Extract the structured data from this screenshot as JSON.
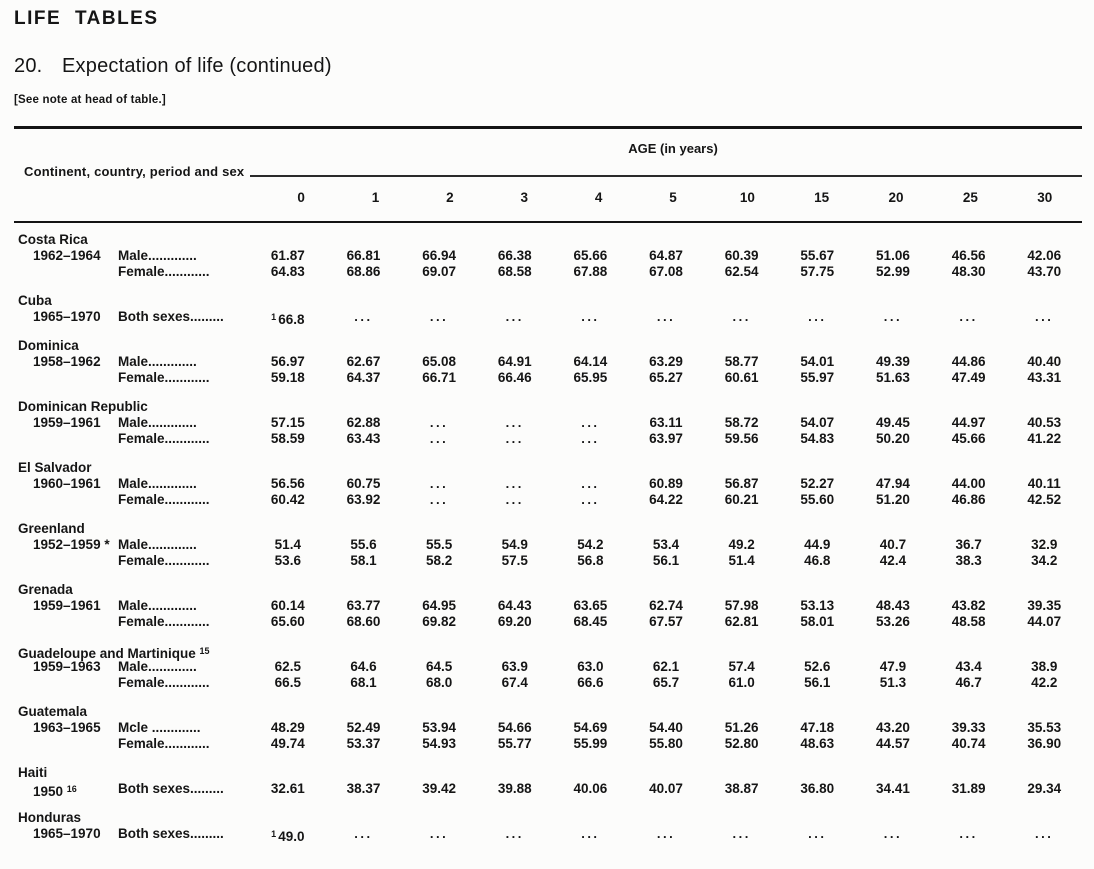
{
  "page": {
    "kicker": "LIFE TABLES",
    "table_number": "20.",
    "title": "Expectation of life (continued)",
    "note": "[See note at head of table.]"
  },
  "table": {
    "stub_header": "Continent, country, period and sex",
    "age_header": "AGE (in years)",
    "age_columns": [
      "0",
      "1",
      "2",
      "3",
      "4",
      "5",
      "10",
      "15",
      "20",
      "25",
      "30"
    ],
    "missing_marker": "...",
    "groups": [
      {
        "country": "Costa Rica",
        "rows": [
          {
            "period": "1962–1964",
            "label": "Male.............",
            "values": [
              "61.87",
              "66.81",
              "66.94",
              "66.38",
              "65.66",
              "64.87",
              "60.39",
              "55.67",
              "51.06",
              "46.56",
              "42.06"
            ]
          },
          {
            "period": "",
            "label": "Female............",
            "values": [
              "64.83",
              "68.86",
              "69.07",
              "68.58",
              "67.88",
              "67.08",
              "62.54",
              "57.75",
              "52.99",
              "48.30",
              "43.70"
            ]
          }
        ]
      },
      {
        "country": "Cuba",
        "rows": [
          {
            "period": "1965–1970",
            "label": "Both sexes.........",
            "values": [
              "^1 66.8",
              "...",
              "...",
              "...",
              "...",
              "...",
              "...",
              "...",
              "...",
              "...",
              "..."
            ]
          }
        ]
      },
      {
        "country": "Dominica",
        "rows": [
          {
            "period": "1958–1962",
            "label": "Male.............",
            "values": [
              "56.97",
              "62.67",
              "65.08",
              "64.91",
              "64.14",
              "63.29",
              "58.77",
              "54.01",
              "49.39",
              "44.86",
              "40.40"
            ]
          },
          {
            "period": "",
            "label": "Female............",
            "values": [
              "59.18",
              "64.37",
              "66.71",
              "66.46",
              "65.95",
              "65.27",
              "60.61",
              "55.97",
              "51.63",
              "47.49",
              "43.31"
            ]
          }
        ]
      },
      {
        "country": "Dominican Republic",
        "rows": [
          {
            "period": "1959–1961",
            "label": "Male.............",
            "values": [
              "57.15",
              "62.88",
              "...",
              "...",
              "...",
              "63.11",
              "58.72",
              "54.07",
              "49.45",
              "44.97",
              "40.53"
            ]
          },
          {
            "period": "",
            "label": "Female............",
            "values": [
              "58.59",
              "63.43",
              "...",
              "...",
              "...",
              "63.97",
              "59.56",
              "54.83",
              "50.20",
              "45.66",
              "41.22"
            ]
          }
        ]
      },
      {
        "country": "El Salvador",
        "rows": [
          {
            "period": "1960–1961",
            "label": "Male.............",
            "values": [
              "56.56",
              "60.75",
              "...",
              "...",
              "...",
              "60.89",
              "56.87",
              "52.27",
              "47.94",
              "44.00",
              "40.11"
            ]
          },
          {
            "period": "",
            "label": "Female............",
            "values": [
              "60.42",
              "63.92",
              "...",
              "...",
              "...",
              "64.22",
              "60.21",
              "55.60",
              "51.20",
              "46.86",
              "42.52"
            ]
          }
        ]
      },
      {
        "country": "Greenland",
        "rows": [
          {
            "period": "1952–1959 *",
            "label": "Male.............",
            "values": [
              "51.4",
              "55.6",
              "55.5",
              "54.9",
              "54.2",
              "53.4",
              "49.2",
              "44.9",
              "40.7",
              "36.7",
              "32.9"
            ]
          },
          {
            "period": "",
            "label": "Female............",
            "values": [
              "53.6",
              "58.1",
              "58.2",
              "57.5",
              "56.8",
              "56.1",
              "51.4",
              "46.8",
              "42.4",
              "38.3",
              "34.2"
            ]
          }
        ]
      },
      {
        "country": "Grenada",
        "rows": [
          {
            "period": "1959–1961",
            "label": "Male.............",
            "values": [
              "60.14",
              "63.77",
              "64.95",
              "64.43",
              "63.65",
              "62.74",
              "57.98",
              "53.13",
              "48.43",
              "43.82",
              "39.35"
            ]
          },
          {
            "period": "",
            "label": "Female............",
            "values": [
              "65.60",
              "68.60",
              "69.82",
              "69.20",
              "68.45",
              "67.57",
              "62.81",
              "58.01",
              "53.26",
              "48.58",
              "44.07"
            ]
          }
        ]
      },
      {
        "country": "Guadeloupe and Martinique ^15",
        "rows": [
          {
            "period": "1959–1963",
            "label": "Male.............",
            "values": [
              "62.5",
              "64.6",
              "64.5",
              "63.9",
              "63.0",
              "62.1",
              "57.4",
              "52.6",
              "47.9",
              "43.4",
              "38.9"
            ]
          },
          {
            "period": "",
            "label": "Female............",
            "values": [
              "66.5",
              "68.1",
              "68.0",
              "67.4",
              "66.6",
              "65.7",
              "61.0",
              "56.1",
              "51.3",
              "46.7",
              "42.2"
            ]
          }
        ]
      },
      {
        "country": "Guatemala",
        "rows": [
          {
            "period": "1963–1965",
            "label": "Mcle .............",
            "values": [
              "48.29",
              "52.49",
              "53.94",
              "54.66",
              "54.69",
              "54.40",
              "51.26",
              "47.18",
              "43.20",
              "39.33",
              "35.53"
            ]
          },
          {
            "period": "",
            "label": "Female............",
            "values": [
              "49.74",
              "53.37",
              "54.93",
              "55.77",
              "55.99",
              "55.80",
              "52.80",
              "48.63",
              "44.57",
              "40.74",
              "36.90"
            ]
          }
        ]
      },
      {
        "country": "Haiti",
        "rows": [
          {
            "period": "1950 ^16",
            "label": "Both sexes.........",
            "values": [
              "32.61",
              "38.37",
              "39.42",
              "39.88",
              "40.06",
              "40.07",
              "38.87",
              "36.80",
              "34.41",
              "31.89",
              "29.34"
            ]
          }
        ]
      },
      {
        "country": "Honduras",
        "rows": [
          {
            "period": "1965–1970",
            "label": "Both sexes.........",
            "values": [
              "^1 49.0",
              "...",
              "...",
              "...",
              "...",
              "...",
              "...",
              "...",
              "...",
              "...",
              "..."
            ]
          }
        ]
      }
    ]
  }
}
